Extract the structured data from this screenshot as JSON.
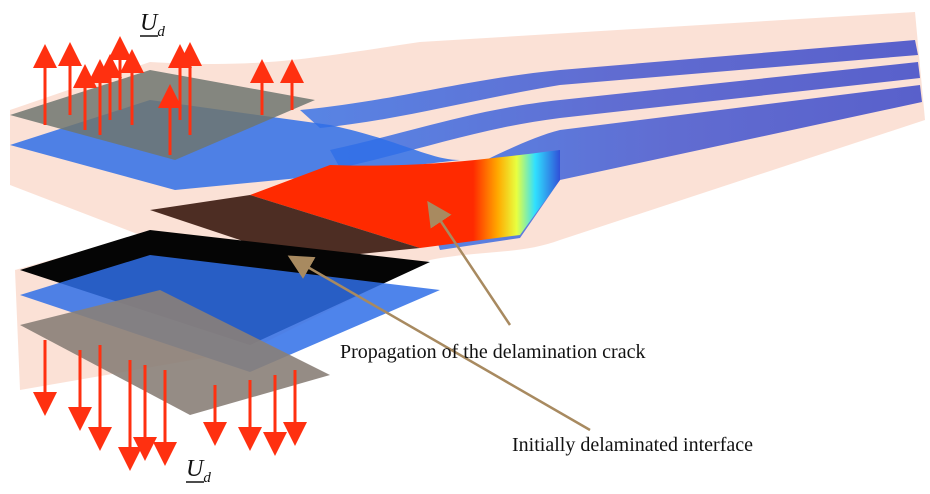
{
  "loads": [
    {
      "symbol": "U",
      "subscript": "d"
    },
    {
      "symbol": "U",
      "subscript": "d"
    }
  ],
  "annotations": [
    "Propagation of the delamination crack",
    "Initially delaminated interface"
  ]
}
